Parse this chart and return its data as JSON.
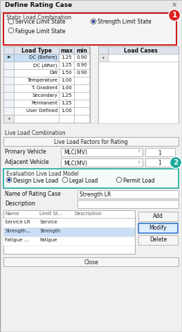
{
  "title": "Define Rating Case",
  "bg_color": "#f0f0f0",
  "white": "#ffffff",
  "red_border": "#cc0000",
  "teal_border": "#1aaa9a",
  "static_load_label": "Static Load Combination",
  "radio_options": [
    "Service Limit State",
    "Strength Limit State",
    "Fatigue Limit State"
  ],
  "table_headers": [
    "Load Type",
    "max",
    "min"
  ],
  "table_rows": [
    [
      "DC (Before)",
      "1.25",
      "0.90"
    ],
    [
      "DC (After)",
      "1.25",
      "0.90"
    ],
    [
      "DW",
      "1.50",
      "0.90"
    ],
    [
      "Temperature",
      "1.00",
      ""
    ],
    [
      "T. Gradient",
      "1.00",
      ""
    ],
    [
      "Secondary",
      "1.25",
      ""
    ],
    [
      "Permanent",
      "1.25",
      ""
    ],
    [
      "User Defined",
      "1.00",
      ""
    ]
  ],
  "load_cases_label": "Load Cases",
  "live_load_label": "Live Load Combination",
  "live_load_button": "Live Load Factors for Rating",
  "primary_vehicle_label": "Primary Vehicle",
  "primary_vehicle_value": "MLC(MV)",
  "primary_vehicle_num": "1",
  "adjacent_vehicle_label": "Adjacent Vehicle",
  "adjacent_vehicle_value": "MLC(MV)",
  "adjacent_vehicle_num": "1",
  "eval_label": "Evaluation Live Load Model",
  "eval_options": [
    "Design Live Load",
    "Legal Load",
    "Permit Load"
  ],
  "eval_selected": 0,
  "name_label": "Name of Rating Case",
  "name_value": "Strength LR",
  "desc_label": "Description",
  "list_headers": [
    "Name",
    "Limit St...",
    "Description"
  ],
  "list_rows": [
    [
      "Service LR",
      "Service",
      ""
    ],
    [
      "Strength...",
      "Strength",
      ""
    ],
    [
      "Fatigue ...",
      "Fatigue",
      ""
    ]
  ],
  "buttons": [
    "Add",
    "Modify",
    "Delete"
  ],
  "badge1_color": "#dd2222",
  "badge2_color": "#1aaa9a"
}
